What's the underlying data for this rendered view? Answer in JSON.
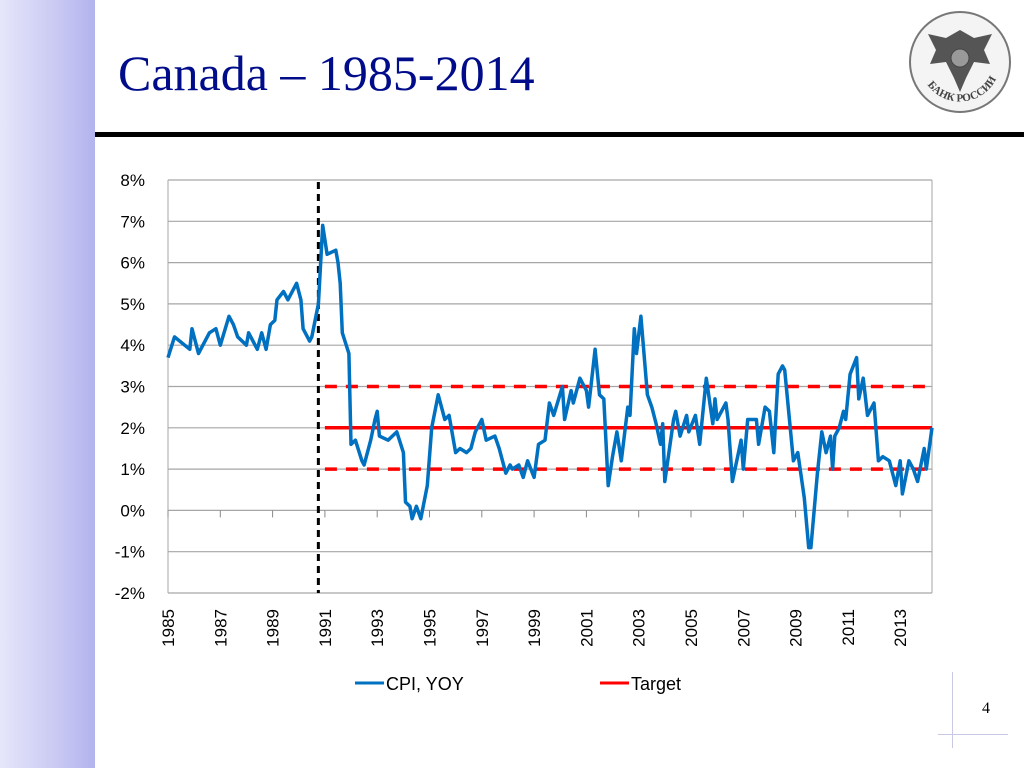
{
  "slide": {
    "title": "Canada – 1985-2014",
    "page_number": "4",
    "logo_text": "БАНК РОССИИ"
  },
  "chart_data": {
    "type": "line",
    "title": "",
    "xlabel": "",
    "ylabel": "",
    "ylim": [
      -2,
      8
    ],
    "xlim": [
      "1985-01",
      "2014-04"
    ],
    "y_ticks": [
      "8%",
      "7%",
      "6%",
      "5%",
      "4%",
      "3%",
      "2%",
      "1%",
      "0%",
      "-1%",
      "-2%"
    ],
    "x_ticks": [
      "1985",
      "1987",
      "1989",
      "1991",
      "1993",
      "1995",
      "1997",
      "1999",
      "2001",
      "2003",
      "2005",
      "2007",
      "2009",
      "2011",
      "2013"
    ],
    "grid": "horizontal",
    "legend_position": "bottom",
    "inflation_targeting_start": "1990-10",
    "colors": {
      "cpi": "#0070c0",
      "target": "#ff0000",
      "regime_line": "#000000",
      "grid": "#a6a6a6"
    },
    "series": [
      {
        "name": "CPI, YOY",
        "style": "solid",
        "points": [
          [
            "1985-01",
            3.7
          ],
          [
            "1985-04",
            4.2
          ],
          [
            "1985-11",
            3.9
          ],
          [
            "1985-12",
            4.4
          ],
          [
            "1986-03",
            3.8
          ],
          [
            "1986-08",
            4.3
          ],
          [
            "1986-11",
            4.4
          ],
          [
            "1987-01",
            4.0
          ],
          [
            "1987-05",
            4.7
          ],
          [
            "1987-07",
            4.5
          ],
          [
            "1987-09",
            4.2
          ],
          [
            "1988-01",
            4.0
          ],
          [
            "1988-02",
            4.3
          ],
          [
            "1988-06",
            3.9
          ],
          [
            "1988-08",
            4.3
          ],
          [
            "1988-10",
            3.9
          ],
          [
            "1988-12",
            4.5
          ],
          [
            "1989-02",
            4.6
          ],
          [
            "1989-03",
            5.1
          ],
          [
            "1989-06",
            5.3
          ],
          [
            "1989-08",
            5.1
          ],
          [
            "1989-12",
            5.5
          ],
          [
            "1990-02",
            5.1
          ],
          [
            "1990-03",
            4.4
          ],
          [
            "1990-06",
            4.1
          ],
          [
            "1990-07",
            4.2
          ],
          [
            "1990-10",
            5.0
          ],
          [
            "1990-12",
            6.9
          ],
          [
            "1991-02",
            6.2
          ],
          [
            "1991-06",
            6.3
          ],
          [
            "1991-07",
            6.0
          ],
          [
            "1991-08",
            5.5
          ],
          [
            "1991-09",
            4.3
          ],
          [
            "1991-12",
            3.8
          ],
          [
            "1992-01",
            1.6
          ],
          [
            "1992-03",
            1.7
          ],
          [
            "1992-06",
            1.2
          ],
          [
            "1992-07",
            1.1
          ],
          [
            "1992-10",
            1.7
          ],
          [
            "1992-12",
            2.2
          ],
          [
            "1993-01",
            2.4
          ],
          [
            "1993-02",
            1.8
          ],
          [
            "1993-06",
            1.7
          ],
          [
            "1993-10",
            1.9
          ],
          [
            "1994-01",
            1.4
          ],
          [
            "1994-02",
            0.2
          ],
          [
            "1994-04",
            0.1
          ],
          [
            "1994-05",
            -0.2
          ],
          [
            "1994-07",
            0.1
          ],
          [
            "1994-09",
            -0.2
          ],
          [
            "1994-12",
            0.6
          ],
          [
            "1995-02",
            2.0
          ],
          [
            "1995-05",
            2.8
          ],
          [
            "1995-06",
            2.6
          ],
          [
            "1995-08",
            2.2
          ],
          [
            "1995-10",
            2.3
          ],
          [
            "1996-01",
            1.4
          ],
          [
            "1996-03",
            1.5
          ],
          [
            "1996-06",
            1.4
          ],
          [
            "1996-08",
            1.5
          ],
          [
            "1996-10",
            1.9
          ],
          [
            "1997-01",
            2.2
          ],
          [
            "1997-03",
            1.7
          ],
          [
            "1997-07",
            1.8
          ],
          [
            "1997-09",
            1.5
          ],
          [
            "1997-12",
            0.9
          ],
          [
            "1998-02",
            1.1
          ],
          [
            "1998-03",
            1.0
          ],
          [
            "1998-06",
            1.1
          ],
          [
            "1998-08",
            0.8
          ],
          [
            "1998-10",
            1.2
          ],
          [
            "1999-01",
            0.8
          ],
          [
            "1999-03",
            1.6
          ],
          [
            "1999-06",
            1.7
          ],
          [
            "1999-08",
            2.6
          ],
          [
            "1999-10",
            2.3
          ],
          [
            "2000-02",
            3.0
          ],
          [
            "2000-03",
            2.2
          ],
          [
            "2000-06",
            2.9
          ],
          [
            "2000-07",
            2.6
          ],
          [
            "2000-10",
            3.2
          ],
          [
            "2001-01",
            2.9
          ],
          [
            "2001-02",
            2.5
          ],
          [
            "2001-05",
            3.9
          ],
          [
            "2001-07",
            2.8
          ],
          [
            "2001-09",
            2.7
          ],
          [
            "2001-11",
            0.6
          ],
          [
            "2002-01",
            1.3
          ],
          [
            "2002-03",
            1.9
          ],
          [
            "2002-05",
            1.2
          ],
          [
            "2002-08",
            2.5
          ],
          [
            "2002-09",
            2.3
          ],
          [
            "2002-11",
            4.4
          ],
          [
            "2002-12",
            3.8
          ],
          [
            "2003-02",
            4.7
          ],
          [
            "2003-05",
            2.8
          ],
          [
            "2003-07",
            2.5
          ],
          [
            "2003-09",
            2.1
          ],
          [
            "2003-11",
            1.6
          ],
          [
            "2003-12",
            2.1
          ],
          [
            "2004-01",
            0.7
          ],
          [
            "2004-05",
            2.2
          ],
          [
            "2004-06",
            2.4
          ],
          [
            "2004-08",
            1.8
          ],
          [
            "2004-11",
            2.3
          ],
          [
            "2004-12",
            1.9
          ],
          [
            "2005-03",
            2.3
          ],
          [
            "2005-05",
            1.6
          ],
          [
            "2005-08",
            3.2
          ],
          [
            "2005-11",
            2.1
          ],
          [
            "2005-12",
            2.7
          ],
          [
            "2006-01",
            2.2
          ],
          [
            "2006-05",
            2.6
          ],
          [
            "2006-06",
            2.2
          ],
          [
            "2006-08",
            0.7
          ],
          [
            "2006-12",
            1.7
          ],
          [
            "2007-01",
            1.0
          ],
          [
            "2007-03",
            2.2
          ],
          [
            "2007-07",
            2.2
          ],
          [
            "2007-08",
            1.6
          ],
          [
            "2007-11",
            2.5
          ],
          [
            "2008-01",
            2.4
          ],
          [
            "2008-03",
            1.4
          ],
          [
            "2008-05",
            3.3
          ],
          [
            "2008-07",
            3.5
          ],
          [
            "2008-08",
            3.4
          ],
          [
            "2008-12",
            1.2
          ],
          [
            "2009-02",
            1.4
          ],
          [
            "2009-05",
            0.3
          ],
          [
            "2009-07",
            -0.9
          ],
          [
            "2009-08",
            -0.9
          ],
          [
            "2009-11",
            0.9
          ],
          [
            "2010-01",
            1.9
          ],
          [
            "2010-03",
            1.4
          ],
          [
            "2010-05",
            1.8
          ],
          [
            "2010-06",
            1.0
          ],
          [
            "2010-07",
            1.8
          ],
          [
            "2010-09",
            2.0
          ],
          [
            "2010-11",
            2.4
          ],
          [
            "2010-12",
            2.2
          ],
          [
            "2011-02",
            3.3
          ],
          [
            "2011-05",
            3.7
          ],
          [
            "2011-06",
            2.7
          ],
          [
            "2011-08",
            3.2
          ],
          [
            "2011-10",
            2.3
          ],
          [
            "2012-01",
            2.6
          ],
          [
            "2012-02",
            1.9
          ],
          [
            "2012-03",
            1.2
          ],
          [
            "2012-05",
            1.3
          ],
          [
            "2012-08",
            1.2
          ],
          [
            "2012-11",
            0.6
          ],
          [
            "2013-01",
            1.2
          ],
          [
            "2013-02",
            0.4
          ],
          [
            "2013-05",
            1.2
          ],
          [
            "2013-07",
            1.0
          ],
          [
            "2013-09",
            0.7
          ],
          [
            "2013-12",
            1.5
          ],
          [
            "2014-01",
            1.0
          ],
          [
            "2014-04",
            2.0
          ]
        ]
      },
      {
        "name": "Target",
        "style": "solid",
        "points": [
          [
            "1991-01",
            2
          ],
          [
            "2014-04",
            2
          ]
        ]
      },
      {
        "name": "",
        "style": "dashed",
        "points": [
          [
            "1991-01",
            3
          ],
          [
            "2014-04",
            3
          ]
        ]
      },
      {
        "name": "",
        "style": "dashed",
        "points": [
          [
            "1991-01",
            1
          ],
          [
            "2014-04",
            1
          ]
        ]
      }
    ]
  }
}
